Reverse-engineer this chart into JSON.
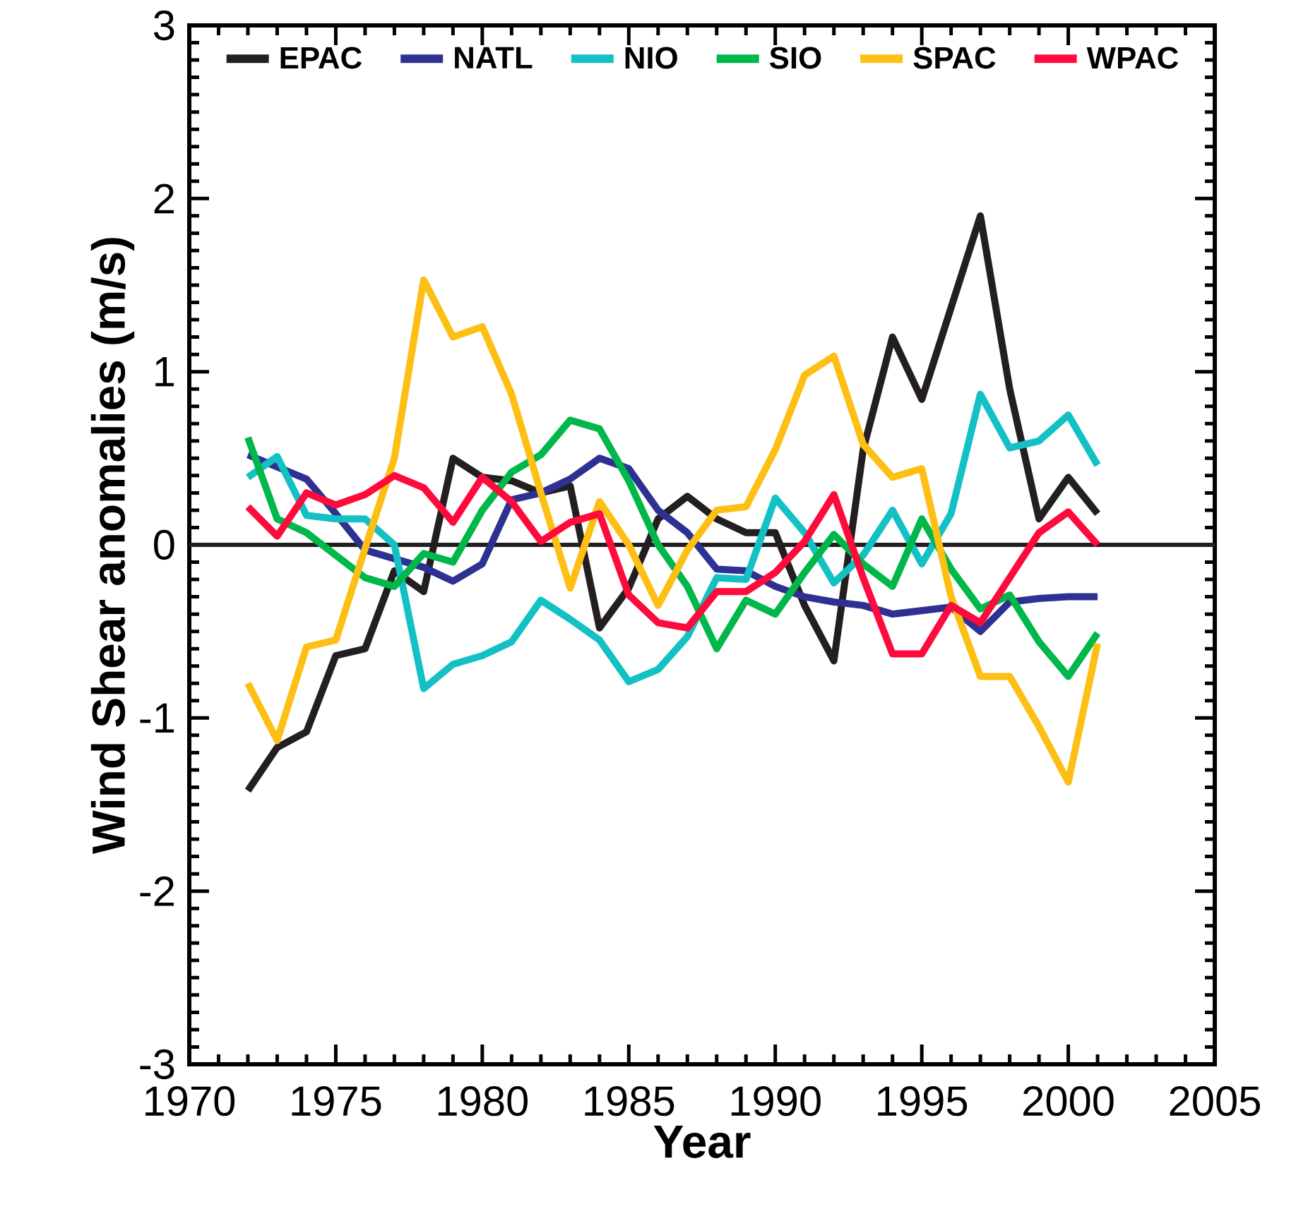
{
  "chart_data": {
    "type": "line",
    "xlabel": "Year",
    "ylabel": "Wind Shear anomalies (m/s)",
    "x": [
      1972,
      1973,
      1974,
      1975,
      1976,
      1977,
      1978,
      1979,
      1980,
      1981,
      1982,
      1983,
      1984,
      1985,
      1986,
      1987,
      1988,
      1989,
      1990,
      1991,
      1992,
      1993,
      1994,
      1995,
      1996,
      1997,
      1998,
      1999,
      2000,
      2001
    ],
    "series": [
      {
        "name": "EPAC",
        "color": "#231f20",
        "values": [
          -1.42,
          -1.17,
          -1.08,
          -0.64,
          -0.6,
          -0.15,
          -0.27,
          0.5,
          0.39,
          0.37,
          0.3,
          0.34,
          -0.48,
          -0.25,
          0.15,
          0.28,
          0.15,
          0.07,
          0.07,
          -0.35,
          -0.67,
          0.55,
          1.2,
          0.84,
          1.37,
          1.9,
          0.9,
          0.15,
          0.39,
          0.18
        ]
      },
      {
        "name": "NATL",
        "color": "#2e3192",
        "values": [
          0.52,
          0.45,
          0.38,
          0.18,
          -0.03,
          -0.08,
          -0.13,
          -0.21,
          -0.11,
          0.26,
          0.3,
          0.38,
          0.5,
          0.44,
          0.2,
          0.07,
          -0.14,
          -0.15,
          -0.24,
          -0.3,
          -0.33,
          -0.35,
          -0.4,
          -0.38,
          -0.36,
          -0.5,
          -0.33,
          -0.31,
          -0.3,
          -0.3
        ]
      },
      {
        "name": "NIO",
        "color": "#13c1c4",
        "values": [
          0.39,
          0.51,
          0.17,
          0.15,
          0.15,
          0.0,
          -0.83,
          -0.69,
          -0.64,
          -0.56,
          -0.32,
          -0.43,
          -0.55,
          -0.79,
          -0.72,
          -0.53,
          -0.19,
          -0.2,
          0.27,
          0.07,
          -0.22,
          -0.06,
          0.2,
          -0.11,
          0.18,
          0.87,
          0.56,
          0.6,
          0.75,
          0.46
        ]
      },
      {
        "name": "SIO",
        "color": "#00b74a",
        "values": [
          0.62,
          0.15,
          0.07,
          -0.06,
          -0.19,
          -0.24,
          -0.05,
          -0.1,
          0.2,
          0.42,
          0.52,
          0.72,
          0.67,
          0.37,
          0.0,
          -0.24,
          -0.6,
          -0.32,
          -0.4,
          -0.16,
          0.06,
          -0.11,
          -0.24,
          0.15,
          -0.14,
          -0.37,
          -0.29,
          -0.56,
          -0.76,
          -0.51
        ]
      },
      {
        "name": "SPAC",
        "color": "#fdbf14",
        "values": [
          -0.8,
          -1.13,
          -0.59,
          -0.55,
          -0.02,
          0.5,
          1.53,
          1.2,
          1.26,
          0.87,
          0.3,
          -0.25,
          0.25,
          0.0,
          -0.35,
          -0.03,
          0.2,
          0.22,
          0.55,
          0.98,
          1.09,
          0.58,
          0.39,
          0.44,
          -0.3,
          -0.76,
          -0.76,
          -1.05,
          -1.37,
          -0.57
        ]
      },
      {
        "name": "WPAC",
        "color": "#fe0a3c",
        "values": [
          0.22,
          0.05,
          0.3,
          0.23,
          0.29,
          0.4,
          0.33,
          0.13,
          0.39,
          0.25,
          0.02,
          0.13,
          0.18,
          -0.29,
          -0.45,
          -0.48,
          -0.27,
          -0.27,
          -0.16,
          0.02,
          0.29,
          -0.19,
          -0.63,
          -0.63,
          -0.35,
          -0.45,
          -0.19,
          0.07,
          0.19,
          0.0
        ]
      }
    ],
    "xlim": [
      1970,
      2005
    ],
    "xticks": [
      1970,
      1975,
      1980,
      1985,
      1990,
      1995,
      2000,
      2005
    ],
    "ylim": [
      -3,
      3
    ],
    "yticks": [
      -3,
      -2,
      -1,
      0,
      1,
      2,
      3
    ],
    "ref_lines": [
      {
        "axis": "y",
        "value": 0,
        "color": "#231f20"
      }
    ],
    "legend": "top"
  }
}
